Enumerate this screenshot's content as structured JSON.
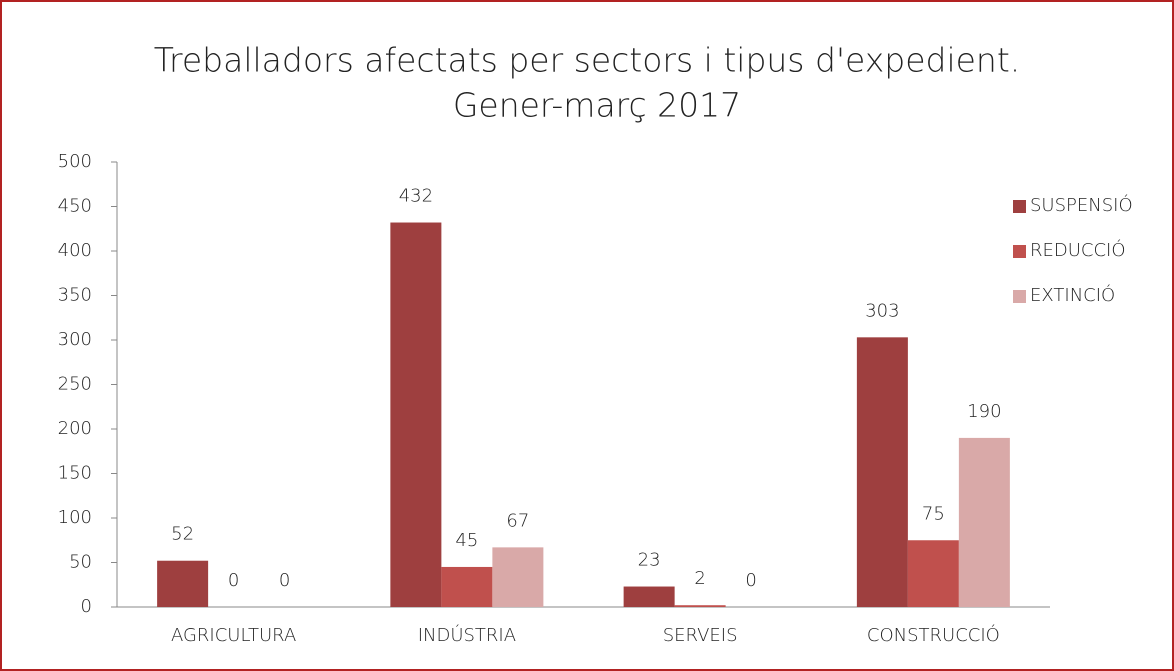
{
  "chart_data": {
    "type": "bar",
    "title": [
      "Treballadors afectats per sectors i tipus d'expedient.",
      "Gener-març 2017"
    ],
    "categories": [
      "AGRICULTURA",
      "INDÚSTRIA",
      "SERVEIS",
      "CONSTRUCCIÓ"
    ],
    "series": [
      {
        "name": "SUSPENSIÓ",
        "color": "#9e3f3f",
        "values": [
          52,
          432,
          23,
          303
        ]
      },
      {
        "name": "REDUCCIÓ",
        "color": "#c0504d",
        "values": [
          0,
          45,
          2,
          75
        ]
      },
      {
        "name": "EXTINCIÓ",
        "color": "#d9a9a8",
        "values": [
          0,
          67,
          0,
          190
        ]
      }
    ],
    "ylim": [
      0,
      500
    ],
    "yticks": [
      0,
      50,
      100,
      150,
      200,
      250,
      300,
      350,
      400,
      450,
      500
    ],
    "grid": false,
    "legend": "right"
  }
}
